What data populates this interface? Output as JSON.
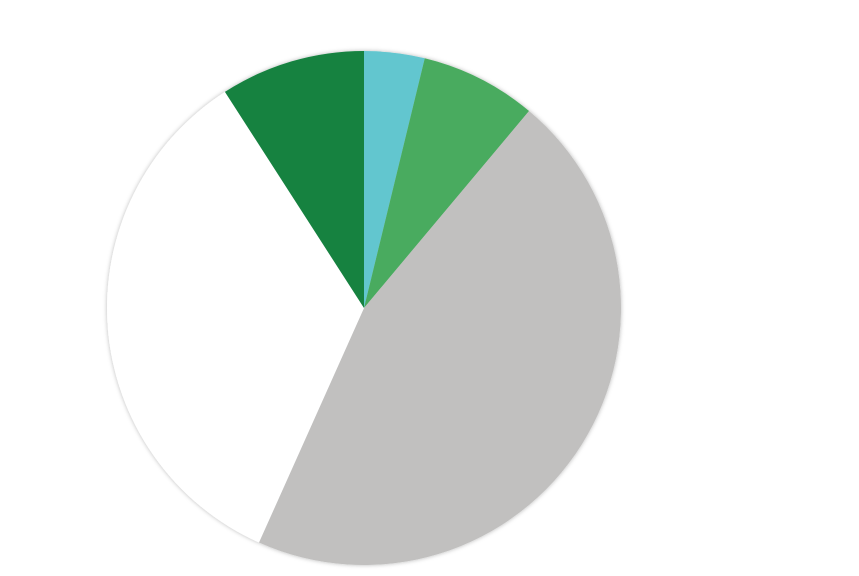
{
  "chart_data": {
    "type": "pie",
    "title": "",
    "start_angle_deg": 0,
    "direction": "clockwise",
    "slices": [
      {
        "value": 3.8,
        "color": "#62c6cf"
      },
      {
        "value": 7.3,
        "color": "#4aab5e"
      },
      {
        "value": 45.6,
        "color": "#c1c0bf"
      },
      {
        "value": 34.2,
        "color": "#ffffff"
      },
      {
        "value": 9.1,
        "color": "#138241"
      }
    ]
  }
}
